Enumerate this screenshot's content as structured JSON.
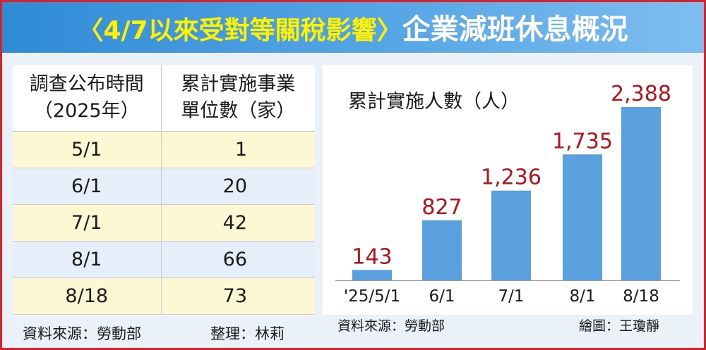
{
  "header": {
    "title_prefix": "〈4/7以來受對等關稅影響〉",
    "title_main": "企業減班休息概況"
  },
  "table": {
    "col1_header_line1": "調查公布時間",
    "col1_header_line2": "（2025年）",
    "col2_header_line1": "累計實施事業",
    "col2_header_line2": "單位數（家）",
    "rows": [
      {
        "date": "5/1",
        "value": "1"
      },
      {
        "date": "6/1",
        "value": "20"
      },
      {
        "date": "7/1",
        "value": "42"
      },
      {
        "date": "8/1",
        "value": "66"
      },
      {
        "date": "8/18",
        "value": "73"
      }
    ],
    "source": "資料來源：勞動部",
    "editor": "整理：林莉"
  },
  "chart_data": {
    "type": "bar",
    "title": "累計實施人數（人）",
    "categories": [
      "'25/5/1",
      "6/1",
      "7/1",
      "8/1",
      "8/18"
    ],
    "values": [
      143,
      827,
      1236,
      1735,
      2388
    ],
    "value_labels": [
      "143",
      "827",
      "1,236",
      "1,735",
      "2,388"
    ],
    "ylim": [
      0,
      2388
    ],
    "grid": false,
    "bar_color": "#5a9fde",
    "label_color": "#b5121b",
    "source": "資料來源：勞動部",
    "credit": "繪圖：王瓊靜"
  }
}
